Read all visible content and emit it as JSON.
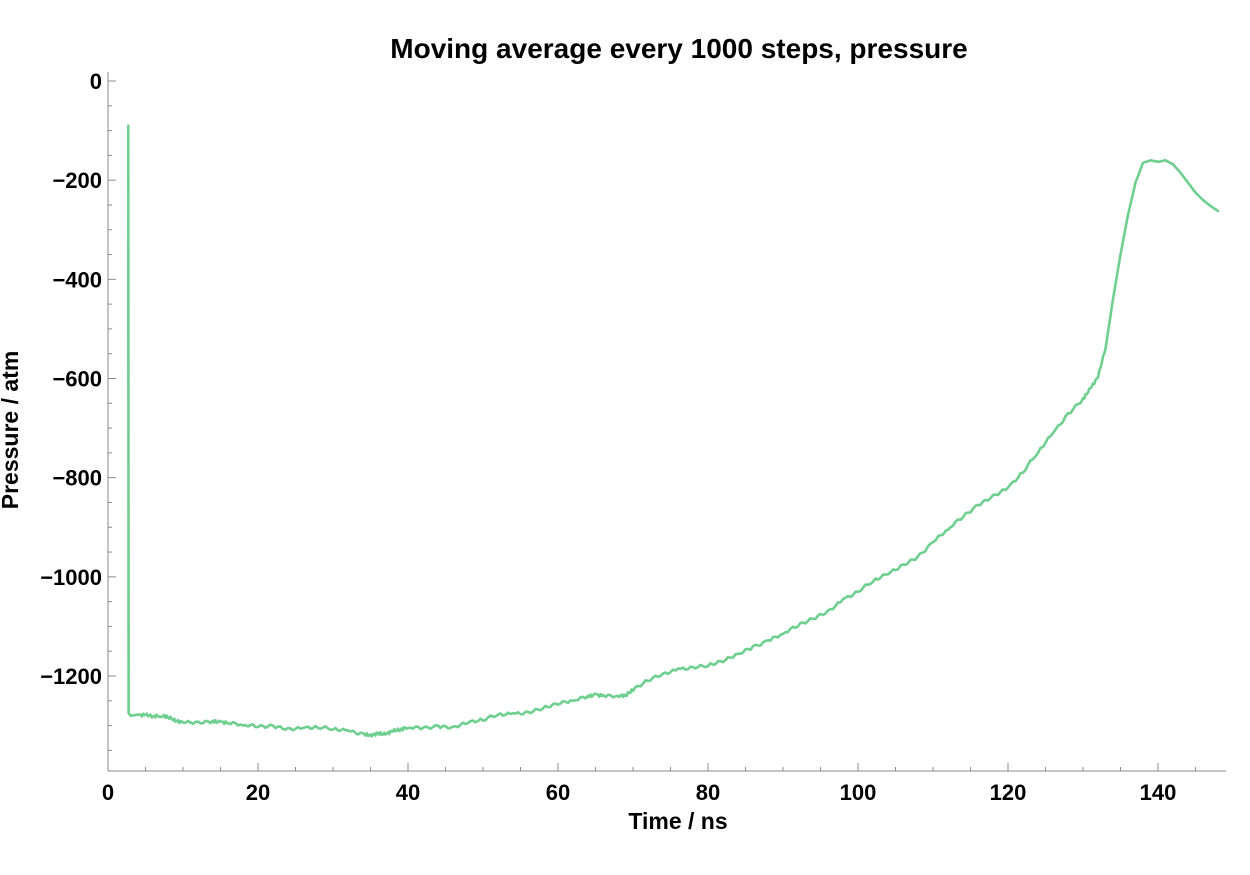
{
  "chart_data": {
    "type": "line",
    "title": "Moving average every 1000 steps, pressure",
    "xlabel": "Time / ns",
    "ylabel": "Pressure / atm",
    "xlim": [
      0,
      150
    ],
    "ylim": [
      -1390,
      0
    ],
    "x_ticks": [
      0,
      20,
      40,
      60,
      80,
      100,
      120,
      140
    ],
    "x_tick_labels": [
      "0",
      "20",
      "40",
      "60",
      "80",
      "100",
      "120",
      "140"
    ],
    "y_ticks": [
      0,
      -200,
      -400,
      -600,
      -800,
      -1000,
      -1200
    ],
    "y_tick_labels": [
      "0",
      "−200",
      "−400",
      "−600",
      "−800",
      "−1000",
      "−1200"
    ],
    "grid": false,
    "series": [
      {
        "color": "#6fcf8f",
        "x": [
          2.7,
          2.75,
          3,
          4,
          5,
          6,
          7,
          8,
          9,
          10,
          12,
          14,
          15,
          16,
          18,
          20,
          22,
          24,
          26,
          28,
          30,
          32,
          34,
          35,
          36,
          37,
          38,
          39,
          40,
          42,
          44,
          46,
          48,
          50,
          52,
          54,
          56,
          58,
          60,
          62,
          64,
          65,
          66,
          68,
          69,
          70,
          72,
          74,
          76,
          78,
          80,
          82,
          84,
          86,
          88,
          90,
          92,
          94,
          96,
          98,
          100,
          102,
          104,
          106,
          108,
          110,
          112,
          114,
          116,
          118,
          120,
          122,
          124,
          126,
          128,
          130,
          131,
          132,
          133,
          134,
          135,
          136,
          137,
          138,
          139,
          140,
          141,
          142,
          143,
          144,
          145,
          146,
          147,
          148
        ],
        "y": [
          -90,
          -1275,
          -1280,
          -1278,
          -1278,
          -1282,
          -1282,
          -1284,
          -1292,
          -1294,
          -1292,
          -1290,
          -1292,
          -1295,
          -1300,
          -1303,
          -1300,
          -1305,
          -1305,
          -1305,
          -1308,
          -1310,
          -1315,
          -1318,
          -1315,
          -1318,
          -1312,
          -1310,
          -1305,
          -1305,
          -1300,
          -1302,
          -1295,
          -1290,
          -1278,
          -1275,
          -1272,
          -1265,
          -1258,
          -1250,
          -1240,
          -1236,
          -1238,
          -1240,
          -1240,
          -1230,
          -1210,
          -1195,
          -1185,
          -1182,
          -1180,
          -1172,
          -1155,
          -1140,
          -1128,
          -1115,
          -1100,
          -1085,
          -1068,
          -1045,
          -1030,
          -1010,
          -995,
          -975,
          -958,
          -930,
          -905,
          -880,
          -855,
          -835,
          -820,
          -790,
          -750,
          -710,
          -670,
          -640,
          -620,
          -598,
          -540,
          -440,
          -350,
          -270,
          -205,
          -165,
          -160,
          -163,
          -160,
          -168,
          -185,
          -205,
          -225,
          -240,
          -252,
          -262
        ]
      }
    ]
  }
}
